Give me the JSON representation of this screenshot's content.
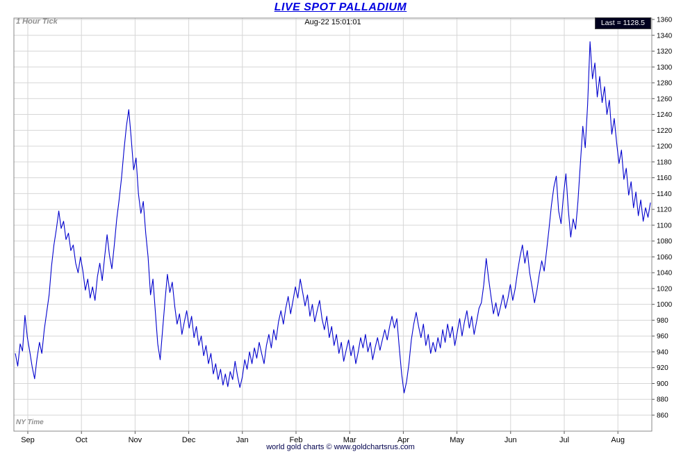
{
  "title": "LIVE SPOT PALLADIUM",
  "header": {
    "tick_label": "1 Hour Tick",
    "timestamp": "Aug-22  15:01:01",
    "last_label": "Last = 1128.5"
  },
  "ny_time_label": "NY Time",
  "footer": "world gold charts © www.goldchartsrus.com",
  "colors": {
    "line": "#0000cd",
    "title": "#0000e0",
    "grid": "#d6d6d6",
    "border": "#888888",
    "axis_text": "#000000",
    "muted_text": "#909090",
    "last_badge_bg": "#00001e",
    "last_badge_text": "#ffffff",
    "footer_text": "#00004d",
    "tick_mark": "#555555"
  },
  "chart_data": {
    "type": "line",
    "title": "LIVE SPOT PALLADIUM",
    "series_name": "Spot Palladium (1 Hour Tick)",
    "x_tick_labels": [
      "Sep",
      "Oct",
      "Nov",
      "Dec",
      "Jan",
      "Feb",
      "Mar",
      "Apr",
      "May",
      "Jun",
      "Jul",
      "Aug"
    ],
    "ylim": [
      860,
      1360
    ],
    "y_tick_step": 20,
    "grid": true,
    "legend_position": "none",
    "last_value": 1128.5,
    "values": [
      938,
      922,
      950,
      941,
      986,
      958,
      940,
      921,
      906,
      932,
      952,
      938,
      968,
      990,
      1012,
      1048,
      1075,
      1095,
      1118,
      1096,
      1105,
      1082,
      1090,
      1068,
      1075,
      1052,
      1040,
      1060,
      1042,
      1018,
      1032,
      1008,
      1022,
      1005,
      1035,
      1052,
      1030,
      1060,
      1088,
      1062,
      1045,
      1075,
      1108,
      1132,
      1160,
      1195,
      1225,
      1246,
      1210,
      1170,
      1185,
      1140,
      1115,
      1130,
      1090,
      1060,
      1012,
      1032,
      990,
      950,
      930,
      968,
      1005,
      1038,
      1015,
      1028,
      998,
      975,
      988,
      962,
      978,
      992,
      970,
      985,
      958,
      972,
      948,
      960,
      935,
      948,
      925,
      938,
      912,
      925,
      905,
      918,
      898,
      912,
      896,
      915,
      905,
      928,
      910,
      895,
      908,
      930,
      918,
      940,
      925,
      945,
      932,
      952,
      938,
      925,
      948,
      962,
      945,
      968,
      955,
      978,
      992,
      975,
      995,
      1010,
      988,
      1005,
      1022,
      1008,
      1032,
      1015,
      998,
      1012,
      985,
      1000,
      978,
      992,
      1005,
      982,
      968,
      985,
      958,
      972,
      948,
      962,
      938,
      952,
      928,
      942,
      955,
      935,
      948,
      925,
      940,
      958,
      945,
      962,
      940,
      952,
      930,
      945,
      958,
      942,
      955,
      968,
      955,
      972,
      985,
      970,
      982,
      945,
      912,
      888,
      902,
      925,
      955,
      975,
      990,
      972,
      958,
      975,
      948,
      962,
      938,
      952,
      940,
      958,
      945,
      968,
      952,
      975,
      958,
      972,
      948,
      965,
      982,
      960,
      978,
      992,
      970,
      985,
      962,
      978,
      995,
      1002,
      1025,
      1058,
      1032,
      1010,
      988,
      1002,
      985,
      998,
      1012,
      995,
      1008,
      1025,
      1005,
      1020,
      1042,
      1060,
      1075,
      1052,
      1068,
      1040,
      1022,
      1002,
      1018,
      1038,
      1055,
      1042,
      1068,
      1095,
      1125,
      1148,
      1162,
      1118,
      1102,
      1138,
      1165,
      1120,
      1085,
      1108,
      1095,
      1130,
      1178,
      1225,
      1198,
      1252,
      1332,
      1285,
      1305,
      1262,
      1288,
      1255,
      1275,
      1240,
      1258,
      1215,
      1235,
      1205,
      1178,
      1195,
      1158,
      1172,
      1138,
      1155,
      1122,
      1142,
      1112,
      1132,
      1105,
      1122,
      1110,
      1128.5
    ]
  }
}
